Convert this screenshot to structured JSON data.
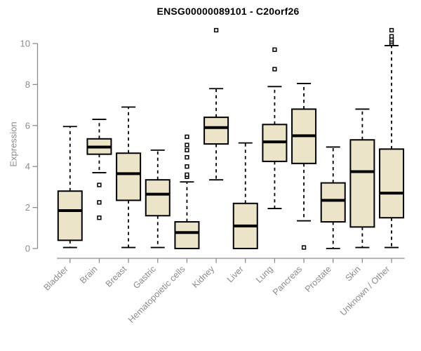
{
  "title": "ENSG00000089101 - C20orf26",
  "chart_data": {
    "type": "boxplot",
    "title": "ENSG00000089101 - C20orf26",
    "xlabel": "",
    "ylabel": "Expression",
    "ylim": [
      0,
      10.9
    ],
    "yticks": [
      0,
      2,
      4,
      6,
      8,
      10
    ],
    "grid": false,
    "legend": "none",
    "categories": [
      "Bladder",
      "Brain",
      "Breast",
      "Gastric",
      "Hematopoietic cells",
      "Kidney",
      "Liver",
      "Lung",
      "Pancreas",
      "Prostate",
      "Skin",
      "Unknown / Other"
    ],
    "series": [
      {
        "name": "Bladder",
        "whisker_low": 0.05,
        "q1": 0.4,
        "median": 1.85,
        "q3": 2.8,
        "whisker_high": 5.95,
        "outliers": []
      },
      {
        "name": "Brain",
        "whisker_low": 3.7,
        "q1": 4.6,
        "median": 4.95,
        "q3": 5.35,
        "whisker_high": 6.3,
        "outliers": [
          3.1,
          2.25,
          1.5
        ]
      },
      {
        "name": "Breast",
        "whisker_low": 0.05,
        "q1": 2.35,
        "median": 3.65,
        "q3": 4.65,
        "whisker_high": 6.9,
        "outliers": []
      },
      {
        "name": "Gastric",
        "whisker_low": 0.05,
        "q1": 1.6,
        "median": 2.65,
        "q3": 3.35,
        "whisker_high": 4.8,
        "outliers": []
      },
      {
        "name": "Hematopoietic cells",
        "whisker_low": 0.0,
        "q1": 0.0,
        "median": 0.78,
        "q3": 1.3,
        "whisker_high": 3.25,
        "outliers": [
          3.5,
          3.6,
          4.0,
          4.45,
          4.8,
          5.05,
          5.45
        ]
      },
      {
        "name": "Kidney",
        "whisker_low": 3.35,
        "q1": 5.1,
        "median": 5.9,
        "q3": 6.4,
        "whisker_high": 7.8,
        "outliers": [
          10.65
        ]
      },
      {
        "name": "Liver",
        "whisker_low": 0.0,
        "q1": 0.0,
        "median": 1.1,
        "q3": 2.2,
        "whisker_high": 5.15,
        "outliers": []
      },
      {
        "name": "Lung",
        "whisker_low": 1.95,
        "q1": 4.25,
        "median": 5.2,
        "q3": 6.05,
        "whisker_high": 7.9,
        "outliers": [
          8.75,
          9.7
        ]
      },
      {
        "name": "Pancreas",
        "whisker_low": 1.35,
        "q1": 4.15,
        "median": 5.5,
        "q3": 6.8,
        "whisker_high": 8.05,
        "outliers": [
          0.05
        ]
      },
      {
        "name": "Prostate",
        "whisker_low": 0.0,
        "q1": 1.3,
        "median": 2.35,
        "q3": 3.2,
        "whisker_high": 4.95,
        "outliers": []
      },
      {
        "name": "Skin",
        "whisker_low": 0.05,
        "q1": 1.05,
        "median": 3.75,
        "q3": 5.3,
        "whisker_high": 6.8,
        "outliers": []
      },
      {
        "name": "Unknown / Other",
        "whisker_low": 0.05,
        "q1": 1.5,
        "median": 2.7,
        "q3": 4.85,
        "whisker_high": 9.9,
        "outliers": [
          10.0,
          10.1,
          10.2,
          10.35,
          10.65
        ]
      }
    ],
    "colors": {
      "box_fill": "#EBE4C8",
      "box_stroke": "#000000",
      "median_color": "#000000",
      "whisker_color": "#000000",
      "outlier_fill": "#FFFFFF",
      "outlier_stroke": "#000000",
      "axis_color": "#8c8c8c",
      "tick_text_color": "#8c8c8c",
      "title_color": "#000000",
      "background": "#FFFFFF"
    }
  }
}
